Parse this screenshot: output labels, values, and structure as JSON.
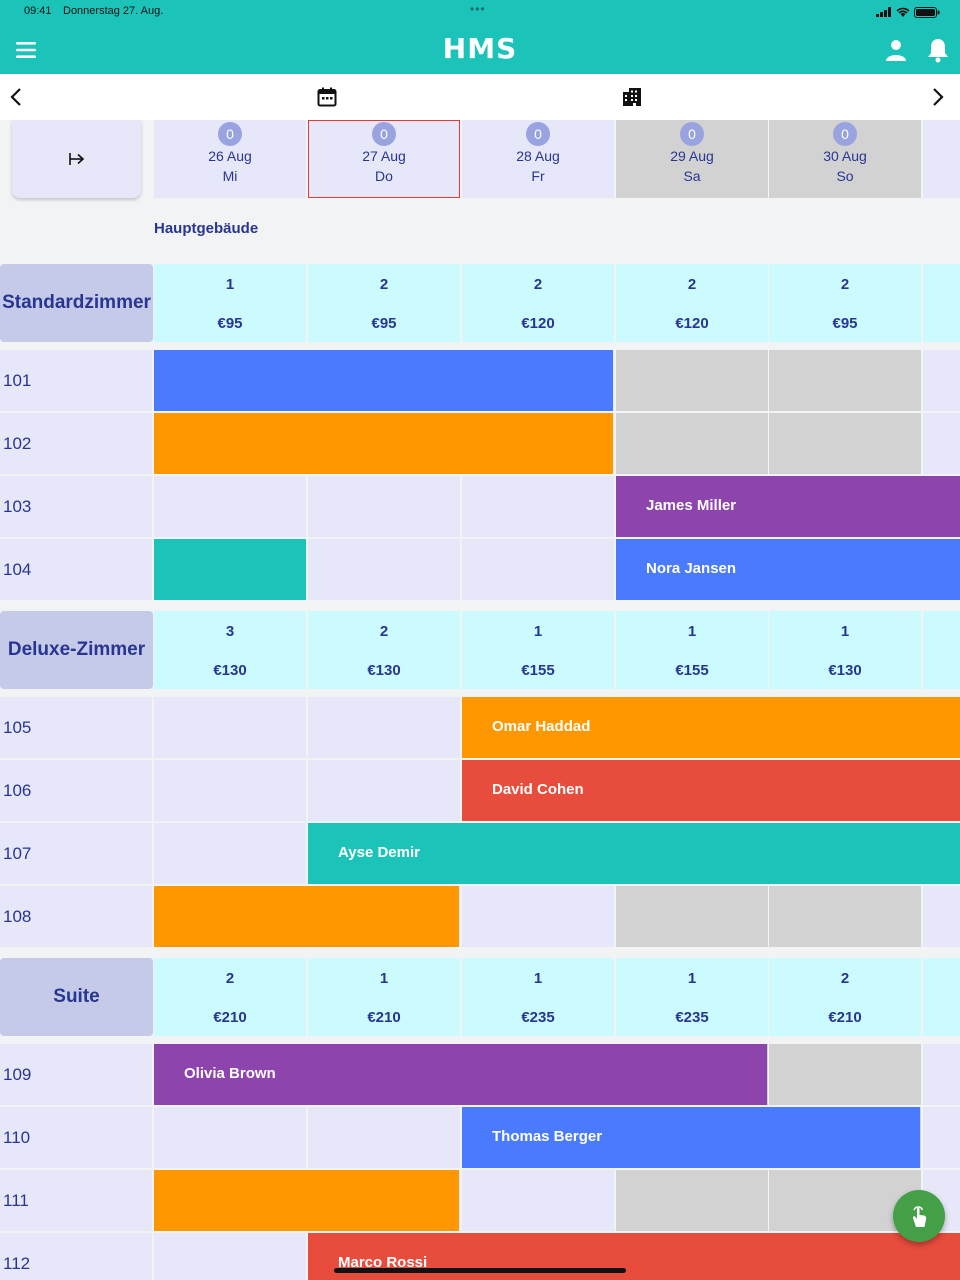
{
  "status_bar": {
    "time": "09:41",
    "date": "Donnerstag 27. Aug."
  },
  "app": {
    "title": "HMS",
    "accent": "#1cc3b8"
  },
  "icons": {
    "menu": "hamburger-icon",
    "user": "user-icon",
    "bell": "bell-icon",
    "prev": "chevron-left-icon",
    "calendar": "calendar-icon",
    "building": "building-icon",
    "next": "chevron-right-icon",
    "expand": "arrow-to-right-icon",
    "fab": "touch-icon"
  },
  "days": [
    {
      "count": "0",
      "date": "26 Aug",
      "dow": "Mi",
      "weekend": false,
      "today": false
    },
    {
      "count": "0",
      "date": "27 Aug",
      "dow": "Do",
      "weekend": false,
      "today": true
    },
    {
      "count": "0",
      "date": "28 Aug",
      "dow": "Fr",
      "weekend": false,
      "today": false
    },
    {
      "count": "0",
      "date": "29 Aug",
      "dow": "Sa",
      "weekend": true,
      "today": false
    },
    {
      "count": "0",
      "date": "30 Aug",
      "dow": "So",
      "weekend": true,
      "today": false
    }
  ],
  "building": "Hauptgebäude",
  "categories": [
    {
      "name": "Standardzimmer",
      "availability": [
        "1",
        "2",
        "2",
        "2",
        "2"
      ],
      "prices": [
        "€95",
        "€95",
        "€120",
        "€120",
        "€95"
      ]
    },
    {
      "name": "Deluxe-Zimmer",
      "availability": [
        "3",
        "2",
        "1",
        "1",
        "1"
      ],
      "prices": [
        "€130",
        "€130",
        "€155",
        "€155",
        "€130"
      ]
    },
    {
      "name": "Suite",
      "availability": [
        "2",
        "1",
        "1",
        "1",
        "2"
      ],
      "prices": [
        "€210",
        "€210",
        "€235",
        "€235",
        "€210"
      ]
    }
  ],
  "rooms": [
    "101",
    "102",
    "103",
    "104",
    "105",
    "106",
    "107",
    "108",
    "109",
    "110",
    "111",
    "112"
  ],
  "bookings": [
    {
      "room": "101",
      "guest": "",
      "color": "#4a7bff"
    },
    {
      "room": "102",
      "guest": "",
      "color": "#ff9800"
    },
    {
      "room": "103",
      "guest": "James Miller",
      "color": "#8e44ad"
    },
    {
      "room": "104",
      "guest": "",
      "color": "#1cc3b8"
    },
    {
      "room": "104",
      "guest": "Nora Jansen",
      "color": "#4a7bff"
    },
    {
      "room": "105",
      "guest": "Omar Haddad",
      "color": "#ff9800"
    },
    {
      "room": "106",
      "guest": "David Cohen",
      "color": "#e74c3c"
    },
    {
      "room": "107",
      "guest": "Ayse Demir",
      "color": "#1cc3b8"
    },
    {
      "room": "108",
      "guest": "",
      "color": "#ff9800"
    },
    {
      "room": "109",
      "guest": "Olivia Brown",
      "color": "#8e44ad"
    },
    {
      "room": "110",
      "guest": "Thomas Berger",
      "color": "#4a7bff"
    },
    {
      "room": "111",
      "guest": "",
      "color": "#ff9800"
    },
    {
      "room": "112",
      "guest": "Marco Rossi",
      "color": "#e74c3c"
    }
  ]
}
